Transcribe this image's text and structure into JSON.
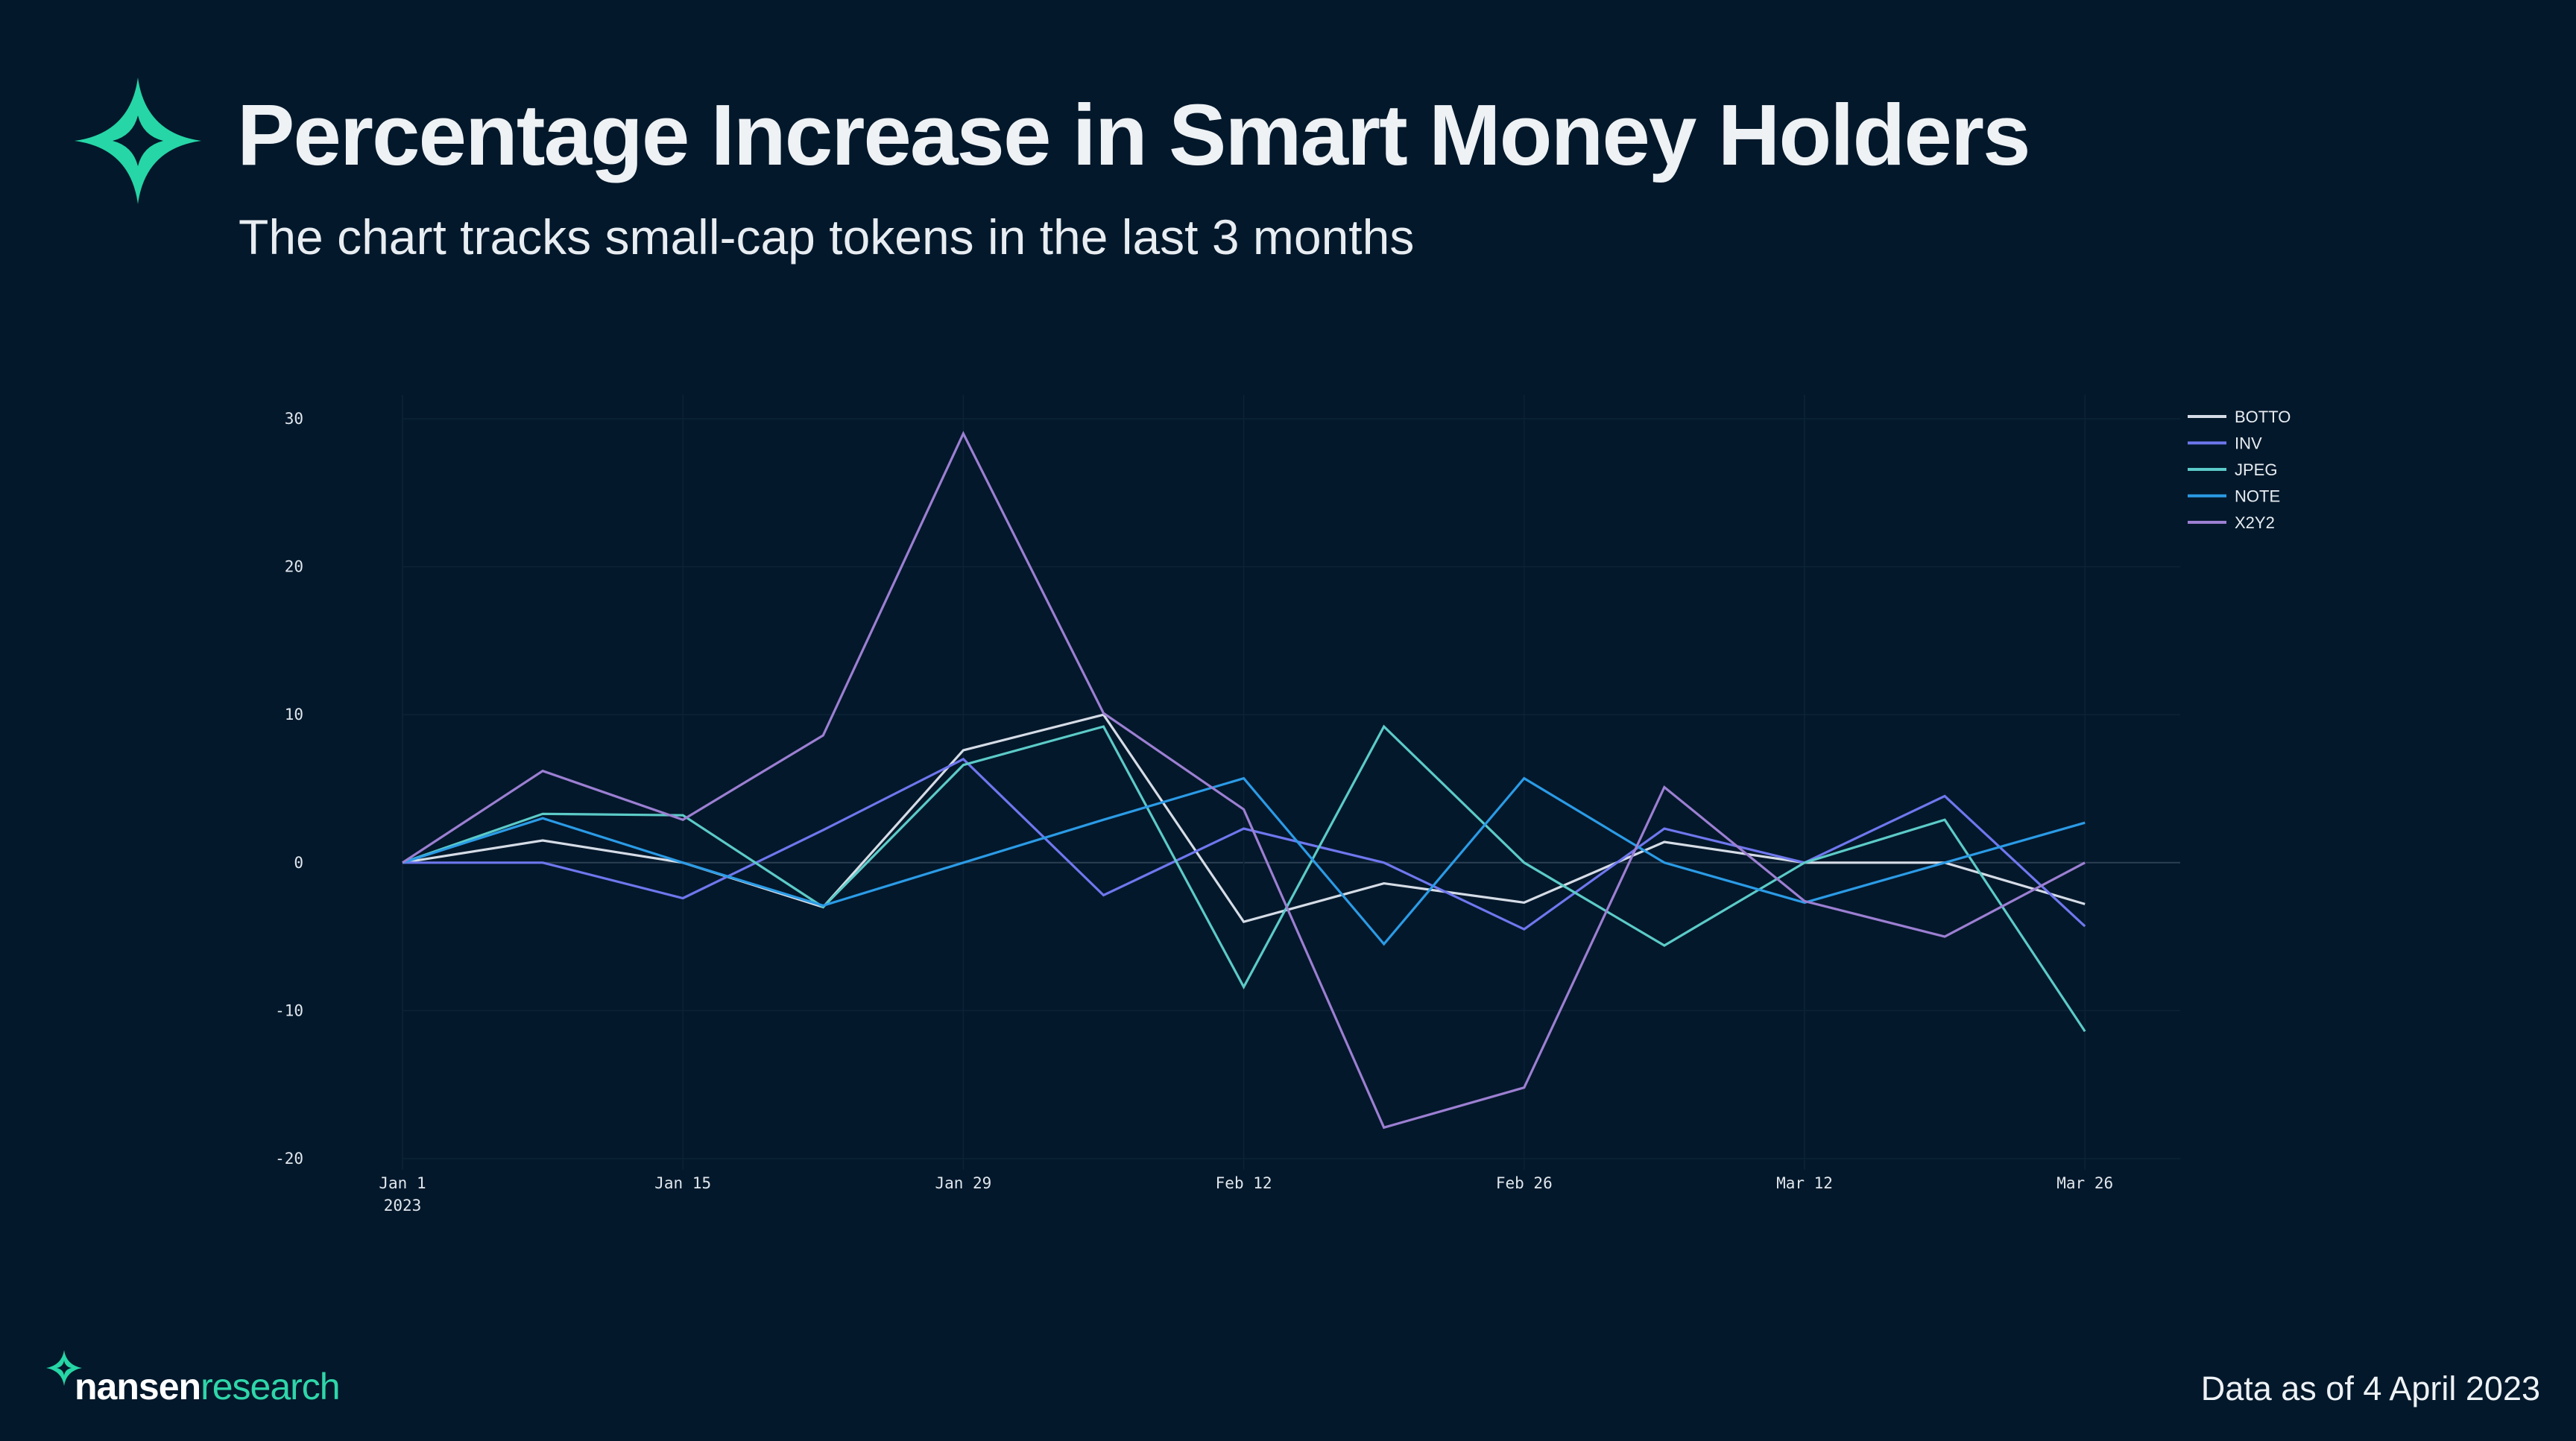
{
  "header": {
    "title": "Percentage Increase in Smart Money Holders",
    "subtitle": "The chart tracks small-cap tokens in the last 3 months"
  },
  "footer": {
    "brand_primary": "nansen",
    "brand_secondary": "research",
    "data_note": "Data as of 4 April 2023"
  },
  "colors": {
    "background": "#03182b",
    "brand_accent": "#2fd6a9"
  },
  "chart_data": {
    "type": "line",
    "title": "Percentage Increase in Smart Money Holders",
    "xlabel": "",
    "ylabel": "",
    "ylim": [
      -20,
      30
    ],
    "yticks": [
      30,
      20,
      10,
      0,
      -10,
      -20
    ],
    "xticks": [
      {
        "label": "Jan 1",
        "sublabel": "2023",
        "index": 0
      },
      {
        "label": "Jan 15",
        "index": 2
      },
      {
        "label": "Jan 29",
        "index": 4
      },
      {
        "label": "Feb 12",
        "index": 6
      },
      {
        "label": "Feb 26",
        "index": 8
      },
      {
        "label": "Mar 12",
        "index": 10
      },
      {
        "label": "Mar 26",
        "index": 12
      }
    ],
    "x": [
      "Jan 1",
      "Jan 8",
      "Jan 15",
      "Jan 22",
      "Jan 29",
      "Feb 5",
      "Feb 12",
      "Feb 19",
      "Feb 26",
      "Mar 5",
      "Mar 12",
      "Mar 19",
      "Mar 26"
    ],
    "grid": true,
    "legend_position": "top-right",
    "series": [
      {
        "name": "BOTTO",
        "color": "#d5dce6",
        "values": [
          0,
          1.5,
          0,
          -3,
          7.6,
          10,
          -4,
          -1.4,
          -2.7,
          1.4,
          0,
          0,
          -2.8
        ]
      },
      {
        "name": "INV",
        "color": "#6f77ee",
        "values": [
          0,
          0,
          -2.4,
          2.2,
          7,
          -2.2,
          2.3,
          0,
          -4.5,
          2.3,
          0,
          4.5,
          -4.3
        ]
      },
      {
        "name": "JPEG",
        "color": "#5ccbc8",
        "values": [
          0,
          3.3,
          3.2,
          -3,
          6.6,
          9.2,
          -8.4,
          9.2,
          0,
          -5.6,
          0,
          2.9,
          -11.4
        ]
      },
      {
        "name": "NOTE",
        "color": "#2b9be6",
        "values": [
          0,
          3,
          0,
          -2.9,
          0,
          2.9,
          5.7,
          -5.5,
          5.7,
          0,
          -2.7,
          0,
          2.7
        ]
      },
      {
        "name": "X2Y2",
        "color": "#9c7fd2",
        "values": [
          0,
          6.2,
          2.9,
          8.6,
          29,
          10.1,
          3.6,
          -17.9,
          -15.2,
          5.1,
          -2.6,
          -5,
          0
        ]
      }
    ]
  }
}
